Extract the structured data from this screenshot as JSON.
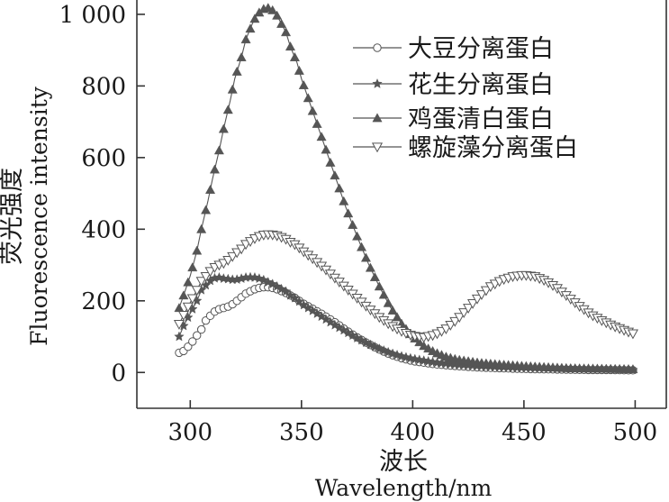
{
  "chart_data": {
    "type": "line",
    "xlabel_cn": "波长",
    "xlabel_en": "Wavelength/nm",
    "ylabel_cn": "荧光强度",
    "ylabel_en": "Fluorescence intensity",
    "xlim": [
      276,
      514
    ],
    "ylim": [
      -100,
      1040
    ],
    "x_ticks": [
      300,
      350,
      400,
      450,
      500
    ],
    "y_ticks": [
      0,
      200,
      400,
      600,
      800,
      1000
    ],
    "x_tick_labels": [
      "300",
      "350",
      "400",
      "450",
      "500"
    ],
    "y_tick_labels": [
      "0",
      "200",
      "400",
      "600",
      "800",
      "1 000"
    ],
    "grid": false,
    "legend_position": "top-right",
    "color": "#555555",
    "series": [
      {
        "name": "大豆分离蛋白",
        "marker": "circle",
        "points": [
          [
            295,
            55
          ],
          [
            297,
            60
          ],
          [
            300,
            78
          ],
          [
            302,
            95
          ],
          [
            305,
            120
          ],
          [
            307,
            145
          ],
          [
            310,
            165
          ],
          [
            312,
            175
          ],
          [
            315,
            180
          ],
          [
            318,
            186
          ],
          [
            320,
            195
          ],
          [
            323,
            210
          ],
          [
            325,
            220
          ],
          [
            328,
            230
          ],
          [
            330,
            235
          ],
          [
            333,
            238
          ],
          [
            335,
            238
          ],
          [
            338,
            235
          ],
          [
            340,
            230
          ],
          [
            343,
            222
          ],
          [
            345,
            215
          ],
          [
            348,
            205
          ],
          [
            350,
            195
          ],
          [
            355,
            178
          ],
          [
            360,
            160
          ],
          [
            365,
            140
          ],
          [
            370,
            118
          ],
          [
            375,
            98
          ],
          [
            380,
            80
          ],
          [
            385,
            64
          ],
          [
            390,
            50
          ],
          [
            395,
            40
          ],
          [
            400,
            32
          ],
          [
            410,
            23
          ],
          [
            420,
            18
          ],
          [
            430,
            14
          ],
          [
            440,
            12
          ],
          [
            450,
            10
          ],
          [
            460,
            9
          ],
          [
            470,
            8
          ],
          [
            480,
            7
          ],
          [
            490,
            7
          ],
          [
            500,
            6
          ]
        ]
      },
      {
        "name": "花生分离蛋白",
        "marker": "star",
        "points": [
          [
            295,
            100
          ],
          [
            297,
            130
          ],
          [
            300,
            165
          ],
          [
            303,
            200
          ],
          [
            305,
            230
          ],
          [
            308,
            250
          ],
          [
            310,
            262
          ],
          [
            313,
            265
          ],
          [
            315,
            262
          ],
          [
            318,
            260
          ],
          [
            320,
            258
          ],
          [
            323,
            262
          ],
          [
            325,
            265
          ],
          [
            328,
            266
          ],
          [
            330,
            264
          ],
          [
            333,
            258
          ],
          [
            335,
            252
          ],
          [
            338,
            244
          ],
          [
            340,
            236
          ],
          [
            343,
            226
          ],
          [
            345,
            215
          ],
          [
            348,
            204
          ],
          [
            350,
            192
          ],
          [
            355,
            172
          ],
          [
            360,
            152
          ],
          [
            365,
            132
          ],
          [
            370,
            114
          ],
          [
            375,
            96
          ],
          [
            380,
            80
          ],
          [
            385,
            66
          ],
          [
            390,
            54
          ],
          [
            395,
            45
          ],
          [
            400,
            38
          ],
          [
            410,
            28
          ],
          [
            420,
            22
          ],
          [
            430,
            18
          ],
          [
            440,
            15
          ],
          [
            450,
            13
          ],
          [
            460,
            11
          ],
          [
            470,
            10
          ],
          [
            480,
            9
          ],
          [
            490,
            8
          ],
          [
            500,
            7
          ]
        ]
      },
      {
        "name": "鸡蛋清白蛋白",
        "marker": "triangle-up",
        "points": [
          [
            295,
            180
          ],
          [
            297,
            215
          ],
          [
            300,
            270
          ],
          [
            303,
            340
          ],
          [
            305,
            400
          ],
          [
            308,
            480
          ],
          [
            310,
            540
          ],
          [
            313,
            620
          ],
          [
            315,
            680
          ],
          [
            318,
            760
          ],
          [
            320,
            820
          ],
          [
            323,
            880
          ],
          [
            325,
            930
          ],
          [
            328,
            975
          ],
          [
            330,
            1000
          ],
          [
            333,
            1015
          ],
          [
            335,
            1018
          ],
          [
            338,
            1008
          ],
          [
            340,
            985
          ],
          [
            343,
            950
          ],
          [
            345,
            910
          ],
          [
            348,
            865
          ],
          [
            350,
            820
          ],
          [
            355,
            730
          ],
          [
            360,
            640
          ],
          [
            365,
            550
          ],
          [
            370,
            460
          ],
          [
            375,
            380
          ],
          [
            380,
            305
          ],
          [
            385,
            240
          ],
          [
            390,
            182
          ],
          [
            395,
            136
          ],
          [
            400,
            100
          ],
          [
            405,
            74
          ],
          [
            410,
            56
          ],
          [
            415,
            44
          ],
          [
            420,
            36
          ],
          [
            430,
            27
          ],
          [
            440,
            22
          ],
          [
            450,
            18
          ],
          [
            460,
            15
          ],
          [
            470,
            12
          ],
          [
            480,
            11
          ],
          [
            490,
            10
          ],
          [
            500,
            9
          ]
        ]
      },
      {
        "name": "螺旋藻分离蛋白",
        "marker": "triangle-down",
        "points": [
          [
            295,
            135
          ],
          [
            297,
            160
          ],
          [
            300,
            195
          ],
          [
            303,
            230
          ],
          [
            305,
            255
          ],
          [
            308,
            275
          ],
          [
            310,
            290
          ],
          [
            313,
            300
          ],
          [
            315,
            305
          ],
          [
            318,
            318
          ],
          [
            320,
            330
          ],
          [
            323,
            345
          ],
          [
            325,
            358
          ],
          [
            328,
            370
          ],
          [
            330,
            378
          ],
          [
            333,
            384
          ],
          [
            335,
            385
          ],
          [
            338,
            384
          ],
          [
            340,
            380
          ],
          [
            343,
            372
          ],
          [
            345,
            364
          ],
          [
            348,
            354
          ],
          [
            350,
            342
          ],
          [
            355,
            318
          ],
          [
            360,
            292
          ],
          [
            365,
            264
          ],
          [
            370,
            236
          ],
          [
            375,
            208
          ],
          [
            380,
            180
          ],
          [
            385,
            154
          ],
          [
            390,
            132
          ],
          [
            395,
            115
          ],
          [
            400,
            102
          ],
          [
            405,
            98
          ],
          [
            410,
            105
          ],
          [
            415,
            122
          ],
          [
            420,
            148
          ],
          [
            425,
            180
          ],
          [
            430,
            212
          ],
          [
            435,
            240
          ],
          [
            440,
            258
          ],
          [
            445,
            268
          ],
          [
            450,
            272
          ],
          [
            455,
            268
          ],
          [
            460,
            255
          ],
          [
            465,
            235
          ],
          [
            470,
            210
          ],
          [
            475,
            185
          ],
          [
            480,
            162
          ],
          [
            485,
            145
          ],
          [
            490,
            130
          ],
          [
            495,
            118
          ],
          [
            500,
            106
          ]
        ]
      }
    ]
  }
}
